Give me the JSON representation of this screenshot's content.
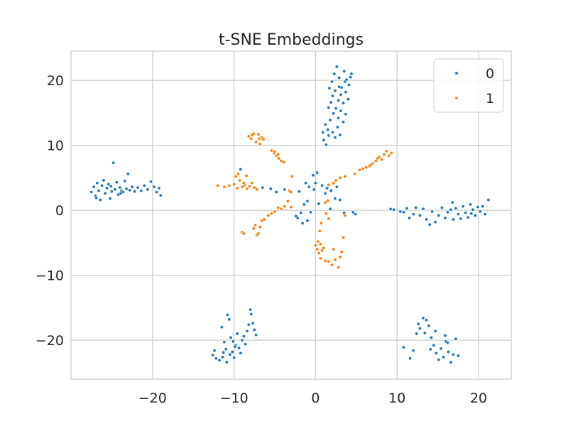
{
  "chart_data": {
    "type": "scatter",
    "title": "t-SNE Embeddings",
    "xlabel": "",
    "ylabel": "",
    "xlim": [
      -30,
      24
    ],
    "ylim": [
      -26,
      24.5
    ],
    "x_ticks": [
      -20,
      -10,
      0,
      10,
      20
    ],
    "y_ticks": [
      -20,
      -10,
      0,
      10,
      20
    ],
    "x_tick_labels": [
      "−20",
      "−10",
      "0",
      "10",
      "20"
    ],
    "y_tick_labels": [
      "−20",
      "−10",
      "0",
      "10",
      "20"
    ],
    "grid": true,
    "legend_position": "top-right",
    "series": [
      {
        "name": "0",
        "color": "#1f77b4",
        "points": [
          [
            -27.5,
            2.8
          ],
          [
            -27.2,
            3.6
          ],
          [
            -27.0,
            2.2
          ],
          [
            -26.8,
            4.2
          ],
          [
            -26.6,
            3.0
          ],
          [
            -26.4,
            1.6
          ],
          [
            -26.2,
            3.8
          ],
          [
            -26.0,
            4.6
          ],
          [
            -25.8,
            2.6
          ],
          [
            -25.6,
            3.4
          ],
          [
            -25.4,
            4.0
          ],
          [
            -25.2,
            1.8
          ],
          [
            -25.0,
            2.9
          ],
          [
            -24.8,
            7.3
          ],
          [
            -24.6,
            3.2
          ],
          [
            -24.4,
            4.3
          ],
          [
            -24.2,
            2.4
          ],
          [
            -24.0,
            3.5
          ],
          [
            -23.8,
            3.0
          ],
          [
            -23.6,
            2.8
          ],
          [
            -23.4,
            4.5
          ],
          [
            -23.2,
            3.3
          ],
          [
            -23.0,
            5.6
          ],
          [
            -22.8,
            3.1
          ],
          [
            -22.5,
            3.6
          ],
          [
            -22.2,
            2.9
          ],
          [
            -21.8,
            3.5
          ],
          [
            -21.4,
            3.0
          ],
          [
            -21.0,
            3.8
          ],
          [
            -20.6,
            3.2
          ],
          [
            -20.2,
            4.4
          ],
          [
            -19.8,
            3.6
          ],
          [
            -19.5,
            2.8
          ],
          [
            -19.2,
            3.4
          ],
          [
            -19.0,
            2.3
          ],
          [
            -26.9,
            1.9
          ],
          [
            -25.1,
            3.7
          ],
          [
            -23.9,
            2.6
          ],
          [
            2.0,
            19.8
          ],
          [
            2.3,
            21.0
          ],
          [
            2.6,
            22.1
          ],
          [
            2.9,
            20.4
          ],
          [
            3.2,
            18.9
          ],
          [
            3.5,
            21.4
          ],
          [
            3.8,
            20.1
          ],
          [
            4.1,
            19.3
          ],
          [
            4.4,
            21.0
          ],
          [
            2.1,
            17.6
          ],
          [
            2.4,
            18.4
          ],
          [
            2.8,
            16.9
          ],
          [
            3.1,
            17.8
          ],
          [
            3.4,
            16.5
          ],
          [
            3.7,
            18.2
          ],
          [
            4.0,
            17.1
          ],
          [
            1.6,
            15.8
          ],
          [
            1.9,
            16.6
          ],
          [
            2.2,
            14.9
          ],
          [
            2.5,
            15.7
          ],
          [
            2.8,
            14.2
          ],
          [
            3.1,
            15.3
          ],
          [
            3.4,
            13.6
          ],
          [
            3.7,
            14.8
          ],
          [
            1.2,
            13.2
          ],
          [
            1.5,
            12.4
          ],
          [
            1.8,
            13.9
          ],
          [
            2.1,
            12.0
          ],
          [
            2.4,
            11.2
          ],
          [
            2.7,
            12.8
          ],
          [
            3.0,
            11.6
          ],
          [
            1.0,
            10.8
          ],
          [
            1.3,
            10.1
          ],
          [
            0.9,
            12.0
          ],
          [
            1.6,
            11.5
          ],
          [
            2.9,
            19.0
          ],
          [
            3.6,
            19.8
          ],
          [
            1.7,
            18.8
          ],
          [
            4.3,
            20.5
          ],
          [
            -9.2,
            6.3
          ],
          [
            -6.5,
            3.5
          ],
          [
            -5.5,
            3.3
          ],
          [
            -4.8,
            2.8
          ],
          [
            -3.8,
            3.2
          ],
          [
            -2.0,
            2.9
          ],
          [
            -1.2,
            4.2
          ],
          [
            -0.8,
            3.6
          ],
          [
            -0.2,
            3.2
          ],
          [
            0.2,
            5.8
          ],
          [
            -0.3,
            5.4
          ],
          [
            0.8,
            3.8
          ],
          [
            1.4,
            3.4
          ],
          [
            1.2,
            2.6
          ],
          [
            2.2,
            4.1
          ],
          [
            2.6,
            3.6
          ],
          [
            3.0,
            1.6
          ],
          [
            -1.0,
            1.4
          ],
          [
            -1.4,
            0.9
          ],
          [
            -1.8,
            -0.4
          ],
          [
            -2.2,
            -1.2
          ],
          [
            -1.6,
            -2.0
          ],
          [
            -1.0,
            -1.6
          ],
          [
            -0.6,
            -0.3
          ],
          [
            0.4,
            1.0
          ],
          [
            1.8,
            0.2
          ],
          [
            3.5,
            -0.4
          ],
          [
            4.6,
            -0.3
          ],
          [
            4.9,
            -0.6
          ],
          [
            2.4,
            1.8
          ],
          [
            0.0,
            4.2
          ],
          [
            1.9,
            3.0
          ],
          [
            -2.4,
            -0.9
          ],
          [
            -11.5,
            -18.0
          ],
          [
            -11.2,
            -20.3
          ],
          [
            -11.0,
            -21.4
          ],
          [
            -10.8,
            -16.1
          ],
          [
            -10.6,
            -16.8
          ],
          [
            -10.4,
            -19.6
          ],
          [
            -10.2,
            -21.8
          ],
          [
            -10.0,
            -22.7
          ],
          [
            -9.8,
            -20.8
          ],
          [
            -9.6,
            -19.0
          ],
          [
            -9.4,
            -21.2
          ],
          [
            -9.2,
            -22.0
          ],
          [
            -9.0,
            -20.0
          ],
          [
            -8.8,
            -19.4
          ],
          [
            -8.6,
            -20.6
          ],
          [
            -8.4,
            -18.6
          ],
          [
            -8.2,
            -17.6
          ],
          [
            -8.0,
            -15.3
          ],
          [
            -7.9,
            -16.0
          ],
          [
            -7.7,
            -17.4
          ],
          [
            -7.5,
            -18.4
          ],
          [
            -7.3,
            -19.2
          ],
          [
            -12.4,
            -21.6
          ],
          [
            -12.6,
            -22.3
          ],
          [
            -12.2,
            -22.8
          ],
          [
            -11.8,
            -23.1
          ],
          [
            -11.4,
            -22.6
          ],
          [
            -10.9,
            -23.4
          ],
          [
            -10.5,
            -22.2
          ],
          [
            -9.9,
            -21.0
          ],
          [
            -11.3,
            -21.9
          ],
          [
            -10.1,
            -20.2
          ],
          [
            9.2,
            0.2
          ],
          [
            9.6,
            0.1
          ],
          [
            10.4,
            -0.2
          ],
          [
            10.8,
            -0.3
          ],
          [
            11.2,
            0.3
          ],
          [
            11.5,
            -1.2
          ],
          [
            12.0,
            -0.6
          ],
          [
            12.3,
            0.4
          ],
          [
            12.8,
            -0.8
          ],
          [
            13.2,
            0.2
          ],
          [
            13.6,
            -1.4
          ],
          [
            14.0,
            -2.2
          ],
          [
            14.3,
            -0.2
          ],
          [
            14.7,
            -1.8
          ],
          [
            15.1,
            -0.8
          ],
          [
            15.5,
            0.4
          ],
          [
            15.9,
            -1.2
          ],
          [
            16.2,
            -0.3
          ],
          [
            16.6,
            0.1
          ],
          [
            16.9,
            -1.4
          ],
          [
            17.2,
            0.3
          ],
          [
            17.5,
            -0.6
          ],
          [
            17.8,
            -1.3
          ],
          [
            18.1,
            0.6
          ],
          [
            18.4,
            -0.4
          ],
          [
            18.7,
            -1.1
          ],
          [
            19.0,
            0.9
          ],
          [
            19.3,
            0.1
          ],
          [
            19.6,
            -0.8
          ],
          [
            19.9,
            0.5
          ],
          [
            20.2,
            -0.2
          ],
          [
            20.5,
            0.6
          ],
          [
            20.8,
            -0.6
          ],
          [
            21.2,
            1.6
          ],
          [
            16.8,
            1.2
          ],
          [
            19.1,
            -0.5
          ],
          [
            10.8,
            -21.1
          ],
          [
            11.6,
            -22.8
          ],
          [
            12.0,
            -21.6
          ],
          [
            12.4,
            -19.0
          ],
          [
            12.8,
            -18.2
          ],
          [
            13.2,
            -16.6
          ],
          [
            13.6,
            -16.9
          ],
          [
            13.9,
            -17.8
          ],
          [
            14.2,
            -19.6
          ],
          [
            14.5,
            -20.8
          ],
          [
            14.8,
            -22.0
          ],
          [
            15.1,
            -23.0
          ],
          [
            15.4,
            -21.3
          ],
          [
            15.7,
            -22.6
          ],
          [
            16.0,
            -20.2
          ],
          [
            16.3,
            -21.8
          ],
          [
            16.6,
            -23.4
          ],
          [
            16.9,
            -22.2
          ],
          [
            17.2,
            -19.8
          ],
          [
            17.5,
            -22.4
          ],
          [
            14.1,
            -21.4
          ],
          [
            14.7,
            -18.6
          ],
          [
            15.9,
            -19.3
          ],
          [
            13.4,
            -18.9
          ],
          [
            16.2,
            -20.4
          ],
          [
            12.6,
            -17.5
          ]
        ]
      },
      {
        "name": "1",
        "color": "#ff7f0e",
        "points": [
          [
            -8.2,
            11.4
          ],
          [
            -7.9,
            11.0
          ],
          [
            -7.6,
            11.8
          ],
          [
            -7.3,
            10.5
          ],
          [
            -7.0,
            11.7
          ],
          [
            -6.8,
            10.2
          ],
          [
            -6.6,
            11.2
          ],
          [
            -6.4,
            10.9
          ],
          [
            -7.8,
            11.6
          ],
          [
            -6.9,
            11.0
          ],
          [
            -5.4,
            9.2
          ],
          [
            -5.1,
            8.8
          ],
          [
            -4.8,
            8.4
          ],
          [
            -4.5,
            8.0
          ],
          [
            -4.2,
            7.6
          ],
          [
            -3.9,
            7.4
          ],
          [
            -5.0,
            9.0
          ],
          [
            -4.6,
            8.6
          ],
          [
            -12.0,
            3.8
          ],
          [
            -11.2,
            3.6
          ],
          [
            -10.6,
            3.8
          ],
          [
            -10.0,
            4.0
          ],
          [
            -9.6,
            3.4
          ],
          [
            -9.3,
            4.6
          ],
          [
            -9.0,
            3.6
          ],
          [
            -8.7,
            3.9
          ],
          [
            -8.4,
            3.3
          ],
          [
            -8.1,
            3.7
          ],
          [
            -7.8,
            4.2
          ],
          [
            -7.5,
            3.5
          ],
          [
            -7.2,
            3.2
          ],
          [
            -9.8,
            5.2
          ],
          [
            -9.5,
            5.6
          ],
          [
            -8.8,
            4.2
          ],
          [
            -8.5,
            5.3
          ],
          [
            -3.2,
            3.0
          ],
          [
            -3.0,
            2.8
          ],
          [
            -2.9,
            5.2
          ],
          [
            -9.0,
            -3.4
          ],
          [
            -8.8,
            -3.6
          ],
          [
            -7.6,
            -2.8
          ],
          [
            -7.4,
            -2.3
          ],
          [
            -7.2,
            -3.8
          ],
          [
            -7.0,
            -3.6
          ],
          [
            -6.8,
            -2.6
          ],
          [
            -6.6,
            -1.6
          ],
          [
            -6.3,
            -1.4
          ],
          [
            -5.8,
            -0.8
          ],
          [
            -5.4,
            -0.5
          ],
          [
            -5.0,
            -0.2
          ],
          [
            -4.6,
            0.4
          ],
          [
            -4.2,
            0.2
          ],
          [
            -3.8,
            0.6
          ],
          [
            -3.4,
            1.4
          ],
          [
            -3.0,
            0.5
          ],
          [
            0.0,
            -5.4
          ],
          [
            0.2,
            -6.0
          ],
          [
            0.4,
            -6.6
          ],
          [
            0.6,
            -7.4
          ],
          [
            0.8,
            -6.2
          ],
          [
            1.0,
            -5.8
          ],
          [
            1.2,
            -7.8
          ],
          [
            1.6,
            -7.9
          ],
          [
            2.0,
            -8.4
          ],
          [
            2.4,
            -7.6
          ],
          [
            2.8,
            -8.8
          ],
          [
            3.0,
            -7.2
          ],
          [
            3.2,
            -6.4
          ],
          [
            0.3,
            -4.8
          ],
          [
            2.2,
            -6.0
          ],
          [
            0.5,
            -3.2
          ],
          [
            0.7,
            -2.0
          ],
          [
            1.3,
            -0.5
          ],
          [
            1.2,
            1.2
          ],
          [
            1.5,
            1.5
          ],
          [
            1.6,
            -1.3
          ],
          [
            3.4,
            -4.2
          ],
          [
            3.6,
            -0.8
          ],
          [
            0.6,
            -5.2
          ],
          [
            2.5,
            4.6
          ],
          [
            3.0,
            5.0
          ],
          [
            3.6,
            5.2
          ],
          [
            4.8,
            5.6
          ],
          [
            5.4,
            6.2
          ],
          [
            5.8,
            6.4
          ],
          [
            6.2,
            6.6
          ],
          [
            6.6,
            6.8
          ],
          [
            7.0,
            7.2
          ],
          [
            7.4,
            7.6
          ],
          [
            7.8,
            8.2
          ],
          [
            8.1,
            7.8
          ],
          [
            8.4,
            8.6
          ],
          [
            8.7,
            9.1
          ],
          [
            9.0,
            8.4
          ],
          [
            9.3,
            8.8
          ],
          [
            6.8,
            7.0
          ],
          [
            7.6,
            8.0
          ],
          [
            1.6,
            3.9
          ],
          [
            2.2,
            4.2
          ]
        ]
      }
    ]
  }
}
